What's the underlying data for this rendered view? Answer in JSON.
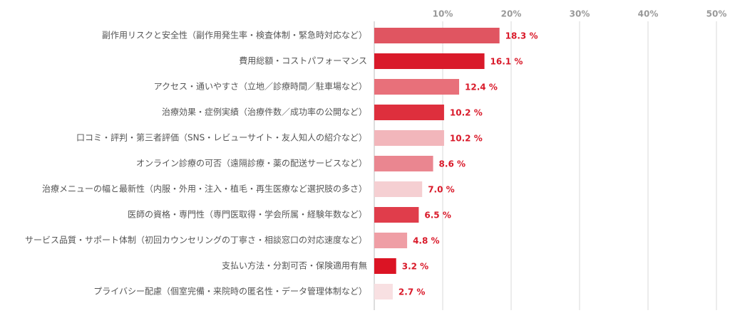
{
  "chart_data": {
    "type": "bar",
    "orientation": "horizontal",
    "categories": [
      "副作用リスクと安全性（副作用発生率・検査体制・緊急時対応など）",
      "費用総額・コストパフォーマンス",
      "アクセス・通いやすさ（立地／診療時間／駐車場など）",
      "治療効果・症例実績（治療件数／成功率の公開など）",
      "口コミ・評判・第三者評価（SNS・レビューサイト・友人知人の紹介など）",
      "オンライン診療の可否（遠隔診療・薬の配送サービスなど）",
      "治療メニューの幅と最新性（内服・外用・注入・植毛・再生医療など選択肢の多さ）",
      "医師の資格・専門性（専門医取得・学会所属・経験年数など）",
      "サービス品質・サポート体制（初回カウンセリングの丁寧さ・相談窓口の対応速度など）",
      "支払い方法・分割可否・保険適用有無",
      "プライバシー配慮（個室完備・来院時の匿名性・データ管理体制など）"
    ],
    "values": [
      18.3,
      16.1,
      12.4,
      10.2,
      10.2,
      8.6,
      7.0,
      6.5,
      4.8,
      3.2,
      2.7
    ],
    "value_labels": [
      "18.3 %",
      "16.1 %",
      "12.4 %",
      "10.2 %",
      "10.2 %",
      "8.6 %",
      "7.0 %",
      "6.5 %",
      "4.8 %",
      "3.2 %",
      "2.7 %"
    ],
    "colors": [
      "#e05561",
      "#d91a2a",
      "#e8707a",
      "#de2f3d",
      "#f2b6bb",
      "#ea8690",
      "#f5cfd2",
      "#e03d4b",
      "#ef9ea5",
      "#db1424",
      "#f8e0e2"
    ],
    "xlim": [
      0,
      50
    ],
    "xticks": [
      {
        "value": 10,
        "label": "10%"
      },
      {
        "value": 20,
        "label": "20%"
      },
      {
        "value": 30,
        "label": "30%"
      },
      {
        "value": 40,
        "label": "40%"
      },
      {
        "value": 50,
        "label": "50%"
      }
    ],
    "grid": true
  }
}
